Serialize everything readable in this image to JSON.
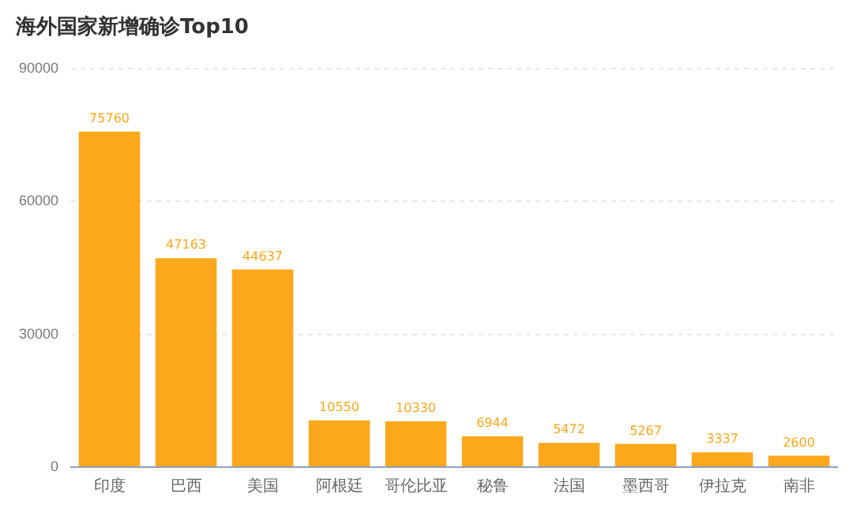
{
  "chart_data": {
    "type": "bar",
    "title": "海外国家新增确诊Top10",
    "categories": [
      "印度",
      "巴西",
      "美国",
      "阿根廷",
      "哥伦比亚",
      "秘鲁",
      "法国",
      "墨西哥",
      "伊拉克",
      "南非"
    ],
    "values": [
      75760,
      47163,
      44637,
      10550,
      10330,
      6944,
      5472,
      5267,
      3337,
      2600
    ],
    "color": "#fba81c",
    "ylim": [
      0,
      90000
    ],
    "yticks": [
      0,
      30000,
      60000,
      90000
    ],
    "grid": "y",
    "data_labels": true,
    "legend": false
  }
}
